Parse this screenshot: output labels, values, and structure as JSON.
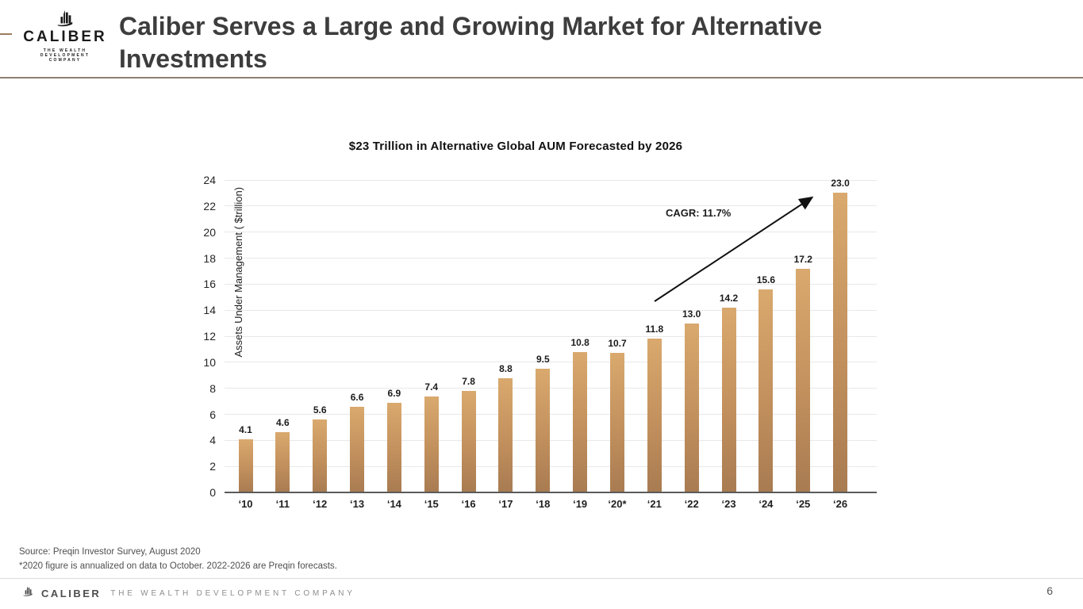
{
  "header": {
    "logo": {
      "name": "CALIBER",
      "tagline_line1": "THE WEALTH DEVELOPMENT",
      "tagline_line2": "COMPANY"
    },
    "title": "Caliber Serves a Large and Growing Market for Alternative Investments",
    "title_lines": [
      "Caliber Serves a Large and Growing Market for Alternative",
      "Investments"
    ]
  },
  "chart_data": {
    "type": "bar",
    "title": "$23 Trillion in Alternative Global AUM Forecasted by 2026",
    "xlabel": "",
    "ylabel": "Assets Under Management ( $trillion)",
    "categories": [
      "‘10",
      "‘11",
      "‘12",
      "‘13",
      "‘14",
      "‘15",
      "‘16",
      "‘17",
      "‘18",
      "‘19",
      "‘20*",
      "‘21",
      "‘22",
      "‘23",
      "‘24",
      "‘25",
      "‘26"
    ],
    "values": [
      4.1,
      4.6,
      5.6,
      6.6,
      6.9,
      7.4,
      7.8,
      8.8,
      9.5,
      10.8,
      10.7,
      11.8,
      13.0,
      14.2,
      15.6,
      17.2,
      23.0
    ],
    "value_labels": [
      "4.1",
      "4.6",
      "5.6",
      "6.6",
      "6.9",
      "7.4",
      "7.8",
      "8.8",
      "9.5",
      "10.8",
      "10.7",
      "11.8",
      "13.0",
      "14.2",
      "15.6",
      "17.2",
      "23.0"
    ],
    "ylim": [
      0,
      24
    ],
    "ytick_step": 2,
    "grid": true,
    "legend": "none",
    "annotation": "CAGR: 11.7%",
    "bar_color_top": "#d9a96e",
    "bar_color_bottom": "#a87b51"
  },
  "footnotes": [
    "Source: Preqin Investor Survey, August 2020",
    "*2020 figure is annualized on data to October. 2022-2026 are Preqin forecasts."
  ],
  "footer": {
    "brand": "CALIBER",
    "tagline": "THE WEALTH DEVELOPMENT COMPANY",
    "page_number": "6"
  },
  "colors": {
    "accent_rule": "#8d8173",
    "title_text": "#3d3d3d",
    "gridline": "#e8e8e8",
    "axis": "#5b5b5b",
    "arrow": "#111111"
  }
}
